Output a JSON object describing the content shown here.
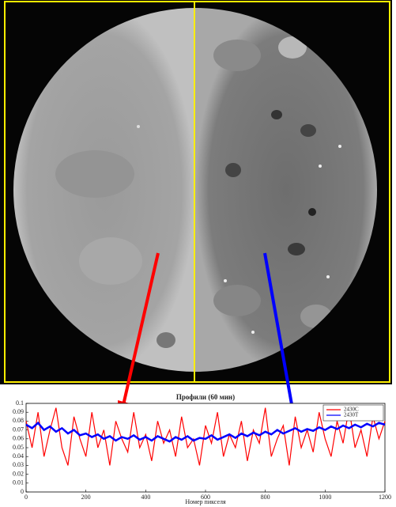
{
  "chart_data": {
    "type": "line",
    "title": "Профили (60 мин)",
    "x_label": "Номер пикселя",
    "x": [
      0,
      20,
      40,
      60,
      80,
      100,
      120,
      140,
      160,
      180,
      200,
      220,
      240,
      260,
      280,
      300,
      320,
      340,
      360,
      380,
      400,
      420,
      440,
      460,
      480,
      500,
      520,
      540,
      560,
      580,
      600,
      620,
      640,
      660,
      680,
      700,
      720,
      740,
      760,
      780,
      800,
      820,
      840,
      860,
      880,
      900,
      920,
      940,
      960,
      980,
      1000,
      1020,
      1040,
      1060,
      1080,
      1100,
      1120,
      1140,
      1160,
      1180,
      1200
    ],
    "series": [
      {
        "name": "2430С",
        "color": "#ff0000",
        "values": [
          0.08,
          0.05,
          0.09,
          0.04,
          0.07,
          0.095,
          0.05,
          0.03,
          0.085,
          0.06,
          0.04,
          0.09,
          0.05,
          0.07,
          0.03,
          0.08,
          0.06,
          0.045,
          0.09,
          0.05,
          0.065,
          0.035,
          0.08,
          0.055,
          0.07,
          0.04,
          0.085,
          0.05,
          0.06,
          0.03,
          0.075,
          0.055,
          0.09,
          0.04,
          0.065,
          0.05,
          0.08,
          0.035,
          0.07,
          0.055,
          0.095,
          0.04,
          0.06,
          0.075,
          0.03,
          0.085,
          0.05,
          0.07,
          0.045,
          0.09,
          0.06,
          0.04,
          0.08,
          0.055,
          0.095,
          0.05,
          0.07,
          0.04,
          0.085,
          0.06,
          0.08
        ]
      },
      {
        "name": "2430Т",
        "color": "#0000ff",
        "values": [
          0.076,
          0.072,
          0.078,
          0.07,
          0.074,
          0.068,
          0.072,
          0.066,
          0.07,
          0.064,
          0.066,
          0.062,
          0.065,
          0.06,
          0.063,
          0.058,
          0.062,
          0.06,
          0.064,
          0.059,
          0.062,
          0.058,
          0.063,
          0.06,
          0.057,
          0.062,
          0.059,
          0.063,
          0.058,
          0.061,
          0.06,
          0.064,
          0.059,
          0.062,
          0.065,
          0.061,
          0.066,
          0.063,
          0.067,
          0.064,
          0.068,
          0.065,
          0.07,
          0.066,
          0.069,
          0.072,
          0.068,
          0.071,
          0.069,
          0.073,
          0.07,
          0.074,
          0.071,
          0.075,
          0.072,
          0.076,
          0.073,
          0.077,
          0.074,
          0.078,
          0.076
        ]
      }
    ],
    "xlim": [
      0,
      1200
    ],
    "ylim": [
      0,
      0.1
    ],
    "xticks": [
      0,
      200,
      400,
      600,
      800,
      1000,
      1200
    ],
    "yticks": [
      0,
      0.01,
      0.02,
      0.03,
      0.04,
      0.05,
      0.06,
      0.07,
      0.08,
      0.09,
      0.1
    ],
    "legend": "upper right"
  }
}
